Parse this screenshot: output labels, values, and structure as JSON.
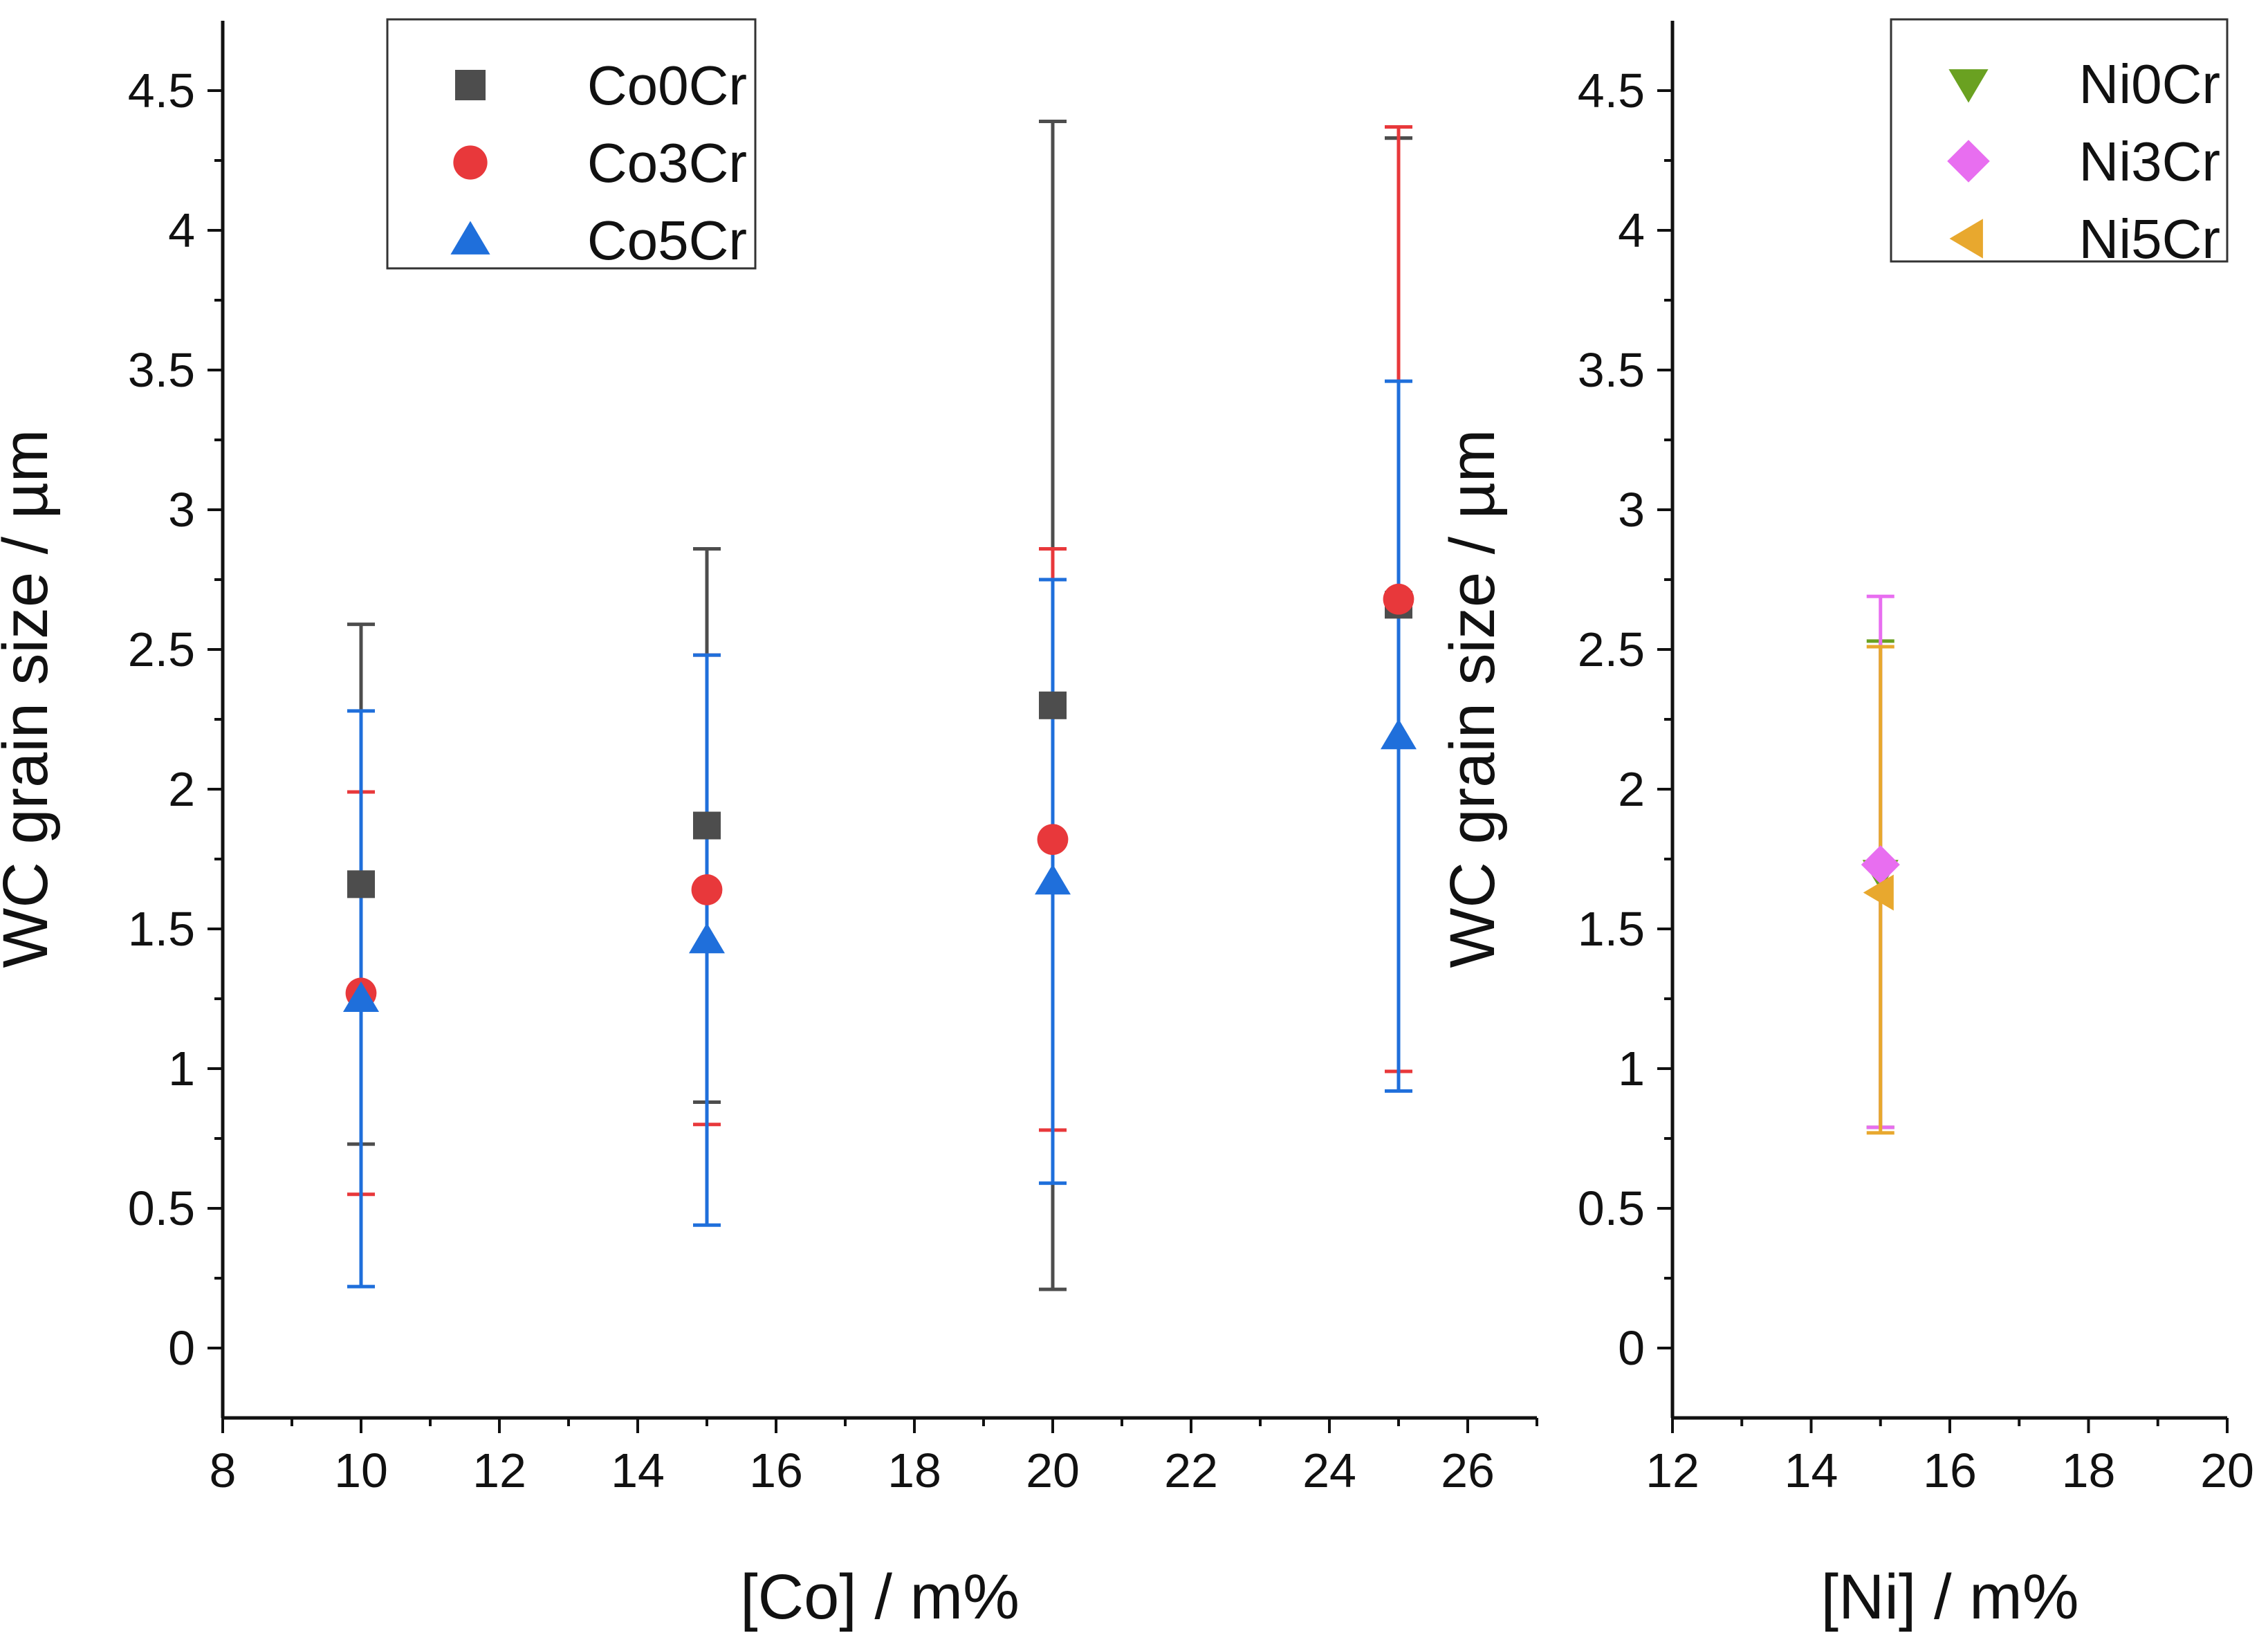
{
  "chart_data": [
    {
      "type": "scatter",
      "xlabel": "[Co] / m%",
      "ylabel": "WC grain size / µm",
      "xlim": [
        8,
        27
      ],
      "ylim": [
        -0.25,
        4.75
      ],
      "xticks": [
        8,
        10,
        12,
        14,
        16,
        18,
        20,
        22,
        24,
        26
      ],
      "xtick_labels": [
        "8",
        "10",
        "12",
        "14",
        "16",
        "18",
        "20",
        "22",
        "24",
        "26"
      ],
      "yticks": [
        0,
        0.5,
        1,
        1.5,
        2,
        2.5,
        3,
        3.5,
        4,
        4.5
      ],
      "ytick_labels": [
        "0",
        "0.5",
        "1",
        "1.5",
        "2",
        "2.5",
        "3",
        "3.5",
        "4",
        "4.5"
      ],
      "grid": false,
      "legend_position": "top-left",
      "series": [
        {
          "name": "Co0Cr",
          "marker": "square",
          "color": "#4d4d4d",
          "x": [
            10,
            15,
            20,
            25
          ],
          "y": [
            1.66,
            1.87,
            2.3,
            2.66
          ],
          "err_low": [
            0.73,
            0.88,
            0.21,
            4.33
          ],
          "err_high": [
            2.59,
            2.86,
            4.39,
            4.33
          ]
        },
        {
          "name": "Co3Cr",
          "marker": "circle",
          "color": "#e8383b",
          "x": [
            10,
            15,
            20,
            25
          ],
          "y": [
            1.27,
            1.64,
            1.82,
            2.68
          ],
          "err_low": [
            0.55,
            0.8,
            0.78,
            0.99
          ],
          "err_high": [
            1.99,
            2.48,
            2.86,
            4.37
          ]
        },
        {
          "name": "Co5Cr",
          "marker": "triangle-up",
          "color": "#1f6fdb",
          "x": [
            10,
            15,
            20,
            25
          ],
          "y": [
            1.25,
            1.46,
            1.67,
            2.19
          ],
          "err_low": [
            0.22,
            0.44,
            0.59,
            0.92
          ],
          "err_high": [
            2.28,
            2.48,
            2.75,
            3.46
          ]
        }
      ]
    },
    {
      "type": "scatter",
      "xlabel": "[Ni] / m%",
      "ylabel": "WC grain size / µm",
      "xlim": [
        12,
        20
      ],
      "ylim": [
        -0.25,
        4.75
      ],
      "xticks": [
        12,
        14,
        16,
        18,
        20
      ],
      "xtick_labels": [
        "12",
        "14",
        "16",
        "18",
        "20"
      ],
      "yticks": [
        0,
        0.5,
        1,
        1.5,
        2,
        2.5,
        3,
        3.5,
        4,
        4.5
      ],
      "ytick_labels": [
        "0",
        "0.5",
        "1",
        "1.5",
        "2",
        "2.5",
        "3",
        "3.5",
        "4",
        "4.5"
      ],
      "grid": false,
      "legend_position": "top-right",
      "series": [
        {
          "name": "Ni0Cr",
          "marker": "triangle-down",
          "color": "#6aa121",
          "x": [
            15
          ],
          "y": [
            1.7
          ],
          "err_low": [
            0.79
          ],
          "err_high": [
            2.53
          ]
        },
        {
          "name": "Ni3Cr",
          "marker": "diamond",
          "color": "#e86ef0",
          "x": [
            15
          ],
          "y": [
            1.73
          ],
          "err_low": [
            0.79
          ],
          "err_high": [
            2.69
          ]
        },
        {
          "name": "Ni5Cr",
          "marker": "triangle-left",
          "color": "#e8a82e",
          "x": [
            15
          ],
          "y": [
            1.63
          ],
          "err_low": [
            0.77
          ],
          "err_high": [
            2.51
          ]
        }
      ]
    }
  ]
}
